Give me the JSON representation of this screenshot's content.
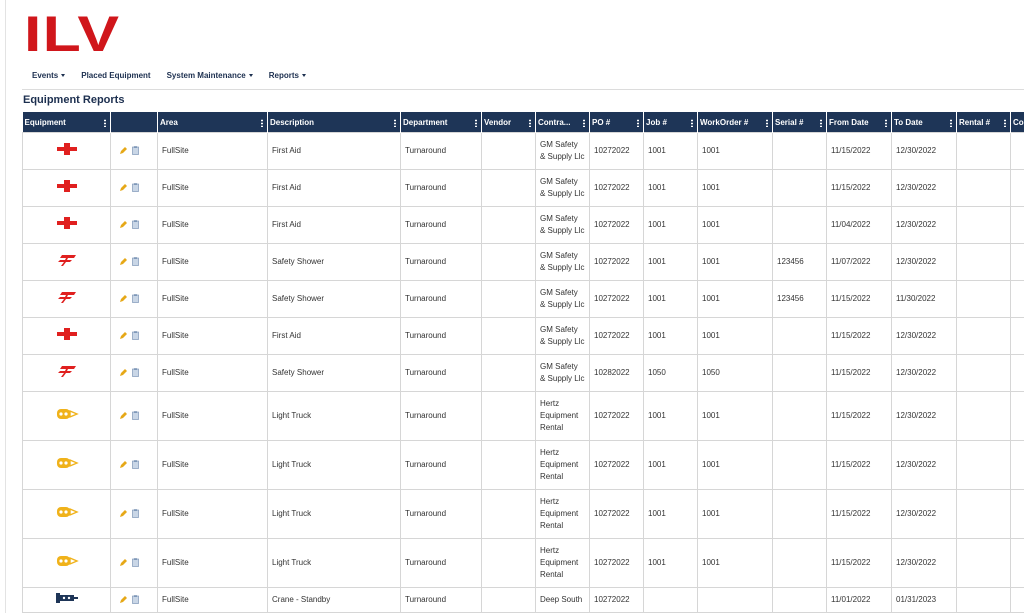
{
  "logo": "ILV",
  "nav": [
    "Events",
    "Placed Equipment",
    "System Maintenance",
    "Reports"
  ],
  "page_title": "Equipment Reports",
  "table": {
    "headers": [
      "Equipment",
      "Area",
      "Description",
      "Department",
      "Vendor",
      "Contra...",
      "PO #",
      "Job #",
      "WorkOrder #",
      "Serial #",
      "From Date",
      "To Date",
      "Rental #",
      "Co"
    ],
    "rows": [
      [
        null,
        "FullSite",
        "First Aid",
        "Turnaround",
        null,
        "GM Safety & Supply Llc",
        "10272022",
        "1001",
        "1001",
        null,
        "11/15/2022",
        "12/30/2022",
        null,
        null
      ],
      [
        null,
        "FullSite",
        "First Aid",
        "Turnaround",
        null,
        "GM Safety & Supply Llc",
        "10272022",
        "1001",
        "1001",
        null,
        "11/15/2022",
        "12/30/2022",
        null,
        null
      ],
      [
        null,
        "FullSite",
        "First Aid",
        "Turnaround",
        null,
        "GM Safety & Supply Llc",
        "10272022",
        "1001",
        "1001",
        null,
        "11/04/2022",
        "12/30/2022",
        null,
        null
      ],
      [
        null,
        "FullSite",
        "Safety Shower",
        "Turnaround",
        null,
        "GM Safety & Supply Llc",
        "10272022",
        "1001",
        "1001",
        "123456",
        "11/07/2022",
        "12/30/2022",
        null,
        null
      ],
      [
        null,
        "FullSite",
        "Safety Shower",
        "Turnaround",
        null,
        "GM Safety & Supply Llc",
        "10272022",
        "1001",
        "1001",
        "123456",
        "11/15/2022",
        "11/30/2022",
        null,
        null
      ],
      [
        null,
        "FullSite",
        "First Aid",
        "Turnaround",
        null,
        "GM Safety & Supply Llc",
        "10272022",
        "1001",
        "1001",
        null,
        "11/15/2022",
        "12/30/2022",
        null,
        null
      ],
      [
        null,
        "FullSite",
        "Safety Shower",
        "Turnaround",
        null,
        "GM Safety & Supply Llc",
        "10282022",
        "1050",
        "1050",
        null,
        "11/15/2022",
        "12/30/2022",
        null,
        null
      ],
      [
        null,
        "FullSite",
        "Light Truck",
        "Turnaround",
        null,
        "Hertz Equipment Rental",
        "10272022",
        "1001",
        "1001",
        null,
        "11/15/2022",
        "12/30/2022",
        null,
        null
      ],
      [
        null,
        "FullSite",
        "Light Truck",
        "Turnaround",
        null,
        "Hertz Equipment Rental",
        "10272022",
        "1001",
        "1001",
        null,
        "11/15/2022",
        "12/30/2022",
        null,
        null
      ],
      [
        null,
        "FullSite",
        "Light Truck",
        "Turnaround",
        null,
        "Hertz Equipment Rental",
        "10272022",
        "1001",
        "1001",
        null,
        "11/15/2022",
        "12/30/2022",
        null,
        null
      ],
      [
        null,
        "FullSite",
        "Light Truck",
        "Turnaround",
        null,
        "Hertz Equipment Rental",
        "10272022",
        "1001",
        "1001",
        null,
        "11/15/2022",
        "12/30/2022",
        null,
        null
      ],
      [
        null,
        "FullSite",
        "Crane - Standby",
        "Turnaround",
        null,
        "Deep South",
        "10272022",
        null,
        null,
        null,
        "11/01/2022",
        "01/31/2023",
        null,
        null
      ]
    ]
  }
}
